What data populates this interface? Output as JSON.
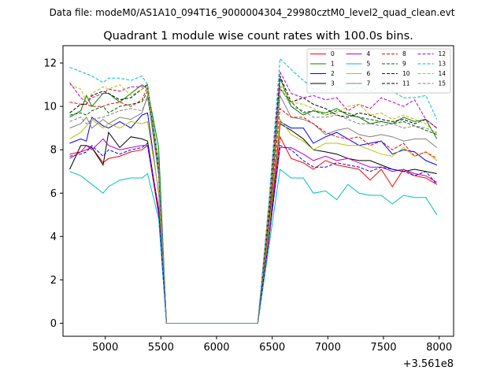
{
  "chart_data": {
    "type": "line",
    "suptitle": "Data file: modeM0/AS1A10_094T16_9000004304_29980cztM0_level2_quad_clean.evt",
    "title": "Quadrant 1 module wise count rates with 100.0s bins.",
    "xlabel": "",
    "ylabel": "",
    "x_offset_label": "+3.561e8",
    "xlim": [
      4620,
      8130
    ],
    "ylim": [
      -0.6,
      12.8
    ],
    "xticks": [
      5000,
      5500,
      6000,
      6500,
      7000,
      7500,
      8000
    ],
    "xtick_labels": [
      "5000",
      "5500",
      "6000",
      "6500",
      "7000",
      "7500",
      "8000"
    ],
    "yticks": [
      0,
      2,
      4,
      6,
      8,
      10,
      12
    ],
    "ytick_labels": [
      "0",
      "2",
      "4",
      "6",
      "8",
      "10",
      "12"
    ],
    "legend_position": "top-right",
    "legend_columns": 4,
    "x": [
      4680,
      4780,
      4830,
      4880,
      4980,
      5030,
      5130,
      5230,
      5330,
      5380,
      5480,
      5550,
      5600,
      6370,
      6470,
      6570,
      6670,
      6780,
      6870,
      6980,
      7080,
      7180,
      7280,
      7380,
      7480,
      7580,
      7680,
      7780,
      7880,
      7980
    ],
    "series": [
      {
        "name": "0",
        "color": "#ff0000",
        "dash": "solid",
        "values": [
          7.8,
          7.9,
          8.0,
          8.1,
          7.4,
          7.6,
          7.7,
          7.9,
          8.0,
          8.2,
          5.0,
          0.0,
          0.0,
          0.0,
          3.8,
          8.6,
          7.6,
          7.4,
          7.1,
          7.5,
          7.3,
          7.2,
          7.1,
          6.6,
          7.1,
          6.3,
          7.1,
          6.8,
          6.7,
          6.4
        ]
      },
      {
        "name": "1",
        "color": "#008000",
        "dash": "solid",
        "values": [
          9.5,
          9.8,
          10.5,
          10.0,
          10.6,
          10.6,
          10.2,
          10.6,
          11.0,
          10.8,
          8.1,
          0.0,
          0.0,
          0.0,
          5.2,
          11.3,
          10.0,
          9.6,
          9.8,
          9.7,
          9.9,
          9.6,
          9.5,
          9.2,
          9.3,
          9.2,
          9.5,
          9.3,
          9.4,
          8.5
        ]
      },
      {
        "name": "2",
        "color": "#0000ff",
        "dash": "solid",
        "values": [
          8.3,
          8.5,
          8.4,
          9.5,
          9.1,
          9.0,
          9.3,
          9.0,
          9.6,
          9.7,
          6.0,
          0.0,
          0.0,
          0.0,
          4.5,
          9.3,
          9.0,
          9.0,
          8.3,
          8.6,
          8.8,
          8.5,
          8.2,
          8.3,
          8.4,
          7.8,
          8.0,
          7.9,
          7.5,
          7.3
        ]
      },
      {
        "name": "3",
        "color": "#000000",
        "dash": "solid",
        "values": [
          7.1,
          8.2,
          8.2,
          8.1,
          7.3,
          8.8,
          8.1,
          8.6,
          8.5,
          8.4,
          5.2,
          0.0,
          0.0,
          0.0,
          4.0,
          9.2,
          8.9,
          8.5,
          8.0,
          7.9,
          7.8,
          7.6,
          7.5,
          7.5,
          7.3,
          7.1,
          7.0,
          7.1,
          7.0,
          6.9
        ]
      },
      {
        "name": "4",
        "color": "#c000c0",
        "dash": "solid",
        "values": [
          7.6,
          7.9,
          8.2,
          8.0,
          8.5,
          8.2,
          8.0,
          8.1,
          8.2,
          8.2,
          5.3,
          0.0,
          0.0,
          0.0,
          3.9,
          8.1,
          8.1,
          7.8,
          7.5,
          7.7,
          7.5,
          7.6,
          7.4,
          7.2,
          7.2,
          7.0,
          7.1,
          6.9,
          6.8,
          6.5
        ]
      },
      {
        "name": "5",
        "color": "#00bfbf",
        "dash": "solid",
        "values": [
          7.0,
          6.8,
          6.6,
          6.4,
          6.0,
          6.3,
          6.6,
          6.7,
          6.7,
          6.9,
          4.8,
          0.0,
          0.0,
          0.0,
          3.5,
          7.1,
          6.7,
          6.7,
          6.0,
          6.1,
          5.7,
          6.4,
          6.0,
          5.9,
          5.9,
          5.5,
          5.9,
          5.8,
          5.8,
          5.0
        ]
      },
      {
        "name": "6",
        "color": "#bfbf00",
        "dash": "solid",
        "values": [
          8.5,
          8.8,
          9.1,
          9.4,
          9.0,
          9.2,
          9.0,
          9.3,
          9.2,
          9.3,
          6.1,
          0.0,
          0.0,
          0.0,
          4.2,
          9.4,
          8.7,
          8.4,
          8.0,
          8.3,
          8.3,
          8.2,
          8.2,
          8.0,
          7.8,
          7.7,
          8.1,
          7.7,
          7.9,
          7.5
        ]
      },
      {
        "name": "7",
        "color": "#808080",
        "dash": "solid",
        "values": [
          9.0,
          9.2,
          9.5,
          9.0,
          9.4,
          9.2,
          9.5,
          9.4,
          9.7,
          10.5,
          6.8,
          0.0,
          0.0,
          0.0,
          4.6,
          10.5,
          9.5,
          9.4,
          9.2,
          8.7,
          8.9,
          9.0,
          8.7,
          8.6,
          8.7,
          8.6,
          8.4,
          8.5,
          8.5,
          8.1
        ]
      },
      {
        "name": "8",
        "color": "#ff0000",
        "dash": "dashed",
        "values": [
          10.2,
          10.1,
          10.1,
          10.0,
          10.0,
          10.1,
          10.2,
          10.0,
          10.3,
          10.9,
          7.2,
          0.0,
          0.0,
          0.0,
          4.7,
          9.9,
          9.5,
          9.5,
          9.2,
          8.8,
          8.6,
          8.5,
          8.6,
          8.2,
          8.4,
          8.0,
          8.3,
          7.7,
          7.9,
          7.6
        ]
      },
      {
        "name": "9",
        "color": "#006400",
        "dash": "dashed",
        "values": [
          9.6,
          9.7,
          9.6,
          9.8,
          10.0,
          9.7,
          10.0,
          10.1,
          10.2,
          10.7,
          7.3,
          0.0,
          0.0,
          0.0,
          4.9,
          10.8,
          10.2,
          9.7,
          9.8,
          9.6,
          9.8,
          9.7,
          9.5,
          9.4,
          9.3,
          9.2,
          9.3,
          9.1,
          8.9,
          8.7
        ]
      },
      {
        "name": "10",
        "color": "#0000ff",
        "dash": "dashed",
        "values": [
          7.7,
          7.8,
          7.9,
          8.2,
          7.7,
          8.0,
          7.8,
          8.0,
          8.1,
          8.3,
          5.2,
          0.0,
          0.0,
          0.0,
          3.9,
          8.2,
          8.0,
          7.5,
          7.2,
          7.2,
          7.4,
          7.3,
          7.2,
          7.0,
          7.2,
          7.1,
          7.0,
          6.8,
          7.0,
          6.4
        ]
      },
      {
        "name": "11",
        "color": "#000000",
        "dash": "dashed",
        "values": [
          9.7,
          10.1,
          10.1,
          10.5,
          10.7,
          10.6,
          10.3,
          10.4,
          10.8,
          11.0,
          7.0,
          0.0,
          0.0,
          0.0,
          5.1,
          11.4,
          10.2,
          10.4,
          10.1,
          9.9,
          9.6,
          9.5,
          9.7,
          9.6,
          9.4,
          9.3,
          9.4,
          9.2,
          9.4,
          9.0
        ]
      },
      {
        "name": "12",
        "color": "#c000c0",
        "dash": "dashed",
        "values": [
          11.1,
          10.4,
          10.2,
          10.4,
          10.6,
          10.8,
          10.7,
          10.9,
          10.9,
          11.0,
          7.4,
          0.0,
          0.0,
          0.0,
          5.5,
          11.6,
          10.6,
          10.4,
          10.5,
          10.3,
          10.4,
          9.8,
          10.1,
          9.9,
          10.4,
          10.2,
          10.0,
          10.3,
          9.4,
          9.0
        ]
      },
      {
        "name": "13",
        "color": "#00bfbf",
        "dash": "dashed",
        "values": [
          11.8,
          11.6,
          11.5,
          11.4,
          11.1,
          11.3,
          11.3,
          11.2,
          11.4,
          11.0,
          7.5,
          0.0,
          0.0,
          0.0,
          5.6,
          12.2,
          11.7,
          11.2,
          10.8,
          10.7,
          10.9,
          10.7,
          10.9,
          10.7,
          10.9,
          10.7,
          10.4,
          10.4,
          10.5,
          9.4
        ]
      },
      {
        "name": "14",
        "color": "#bfbf00",
        "dash": "dashed",
        "values": [
          11.0,
          10.8,
          10.2,
          10.6,
          10.9,
          10.8,
          11.0,
          10.5,
          10.8,
          10.9,
          7.3,
          0.0,
          0.0,
          0.0,
          5.3,
          11.0,
          10.2,
          10.1,
          9.9,
          9.6,
          9.7,
          10.0,
          10.1,
          9.6,
          9.7,
          9.4,
          9.6,
          9.4,
          9.2,
          8.7
        ]
      },
      {
        "name": "15",
        "color": "#808080",
        "dash": "dashed",
        "values": [
          9.3,
          9.5,
          9.2,
          9.4,
          9.5,
          9.6,
          9.8,
          9.9,
          9.8,
          10.4,
          7.1,
          0.0,
          0.0,
          0.0,
          5.0,
          10.9,
          10.0,
          9.8,
          9.5,
          9.5,
          9.6,
          9.4,
          9.2,
          9.2,
          9.1,
          9.2,
          9.0,
          9.1,
          9.0,
          8.8
        ]
      }
    ]
  }
}
